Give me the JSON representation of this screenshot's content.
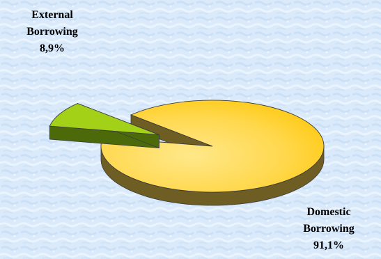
{
  "chart_data": {
    "type": "pie",
    "style": "3d-exploded",
    "slices": [
      {
        "name_lines": [
          "External",
          "Borrowing"
        ],
        "value_label": "8,9%",
        "value": 8.9,
        "color": "#a3d117",
        "side_color": "#4d6a0b",
        "exploded": true
      },
      {
        "name_lines": [
          "Domestic",
          "Borrowing"
        ],
        "value_label": "91,1%",
        "value": 91.1,
        "color": "#ffd23f",
        "side_color": "#6f5e23",
        "exploded": false
      }
    ]
  },
  "colors": {
    "background_light": "#e6f1fc",
    "background_mid": "#cde3f8",
    "outline": "#3b3b3b"
  }
}
